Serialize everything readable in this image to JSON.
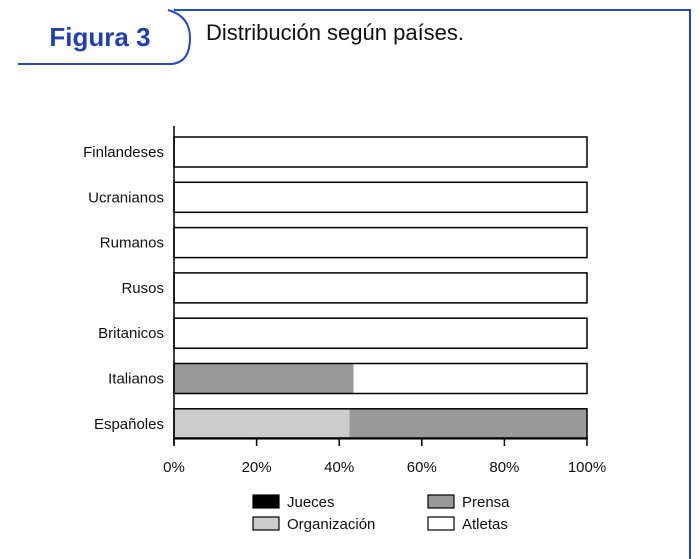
{
  "figure": {
    "label": "Figura 3",
    "title": "Distribución según países."
  },
  "colors": {
    "frame": "#2448c8",
    "label_text": "#1f3fb4"
  },
  "chart_data": {
    "type": "bar",
    "orientation": "horizontal",
    "stacked": true,
    "percent": true,
    "categories": [
      "Finlandeses",
      "Ucranianos",
      "Rumanos",
      "Rusos",
      "Britanicos",
      "Italianos",
      "Españoles"
    ],
    "series": [
      {
        "name": "Jueces",
        "color": "#000000",
        "values": [
          0,
          0,
          0,
          0,
          0,
          0,
          0
        ]
      },
      {
        "name": "Organización",
        "color": "#cccccc",
        "values": [
          0,
          0,
          0,
          0,
          0,
          0,
          42.5
        ]
      },
      {
        "name": "Prensa",
        "color": "#999999",
        "values": [
          0,
          0,
          0,
          0,
          0,
          43.5,
          57.5
        ]
      },
      {
        "name": "Atletas",
        "color": "#ffffff",
        "values": [
          100,
          100,
          100,
          100,
          100,
          56.5,
          0
        ]
      }
    ],
    "xticks": [
      "0%",
      "20%",
      "40%",
      "60%",
      "80%",
      "100%"
    ],
    "xlim": [
      0,
      100
    ],
    "grid": false,
    "legend_position": "bottom"
  }
}
